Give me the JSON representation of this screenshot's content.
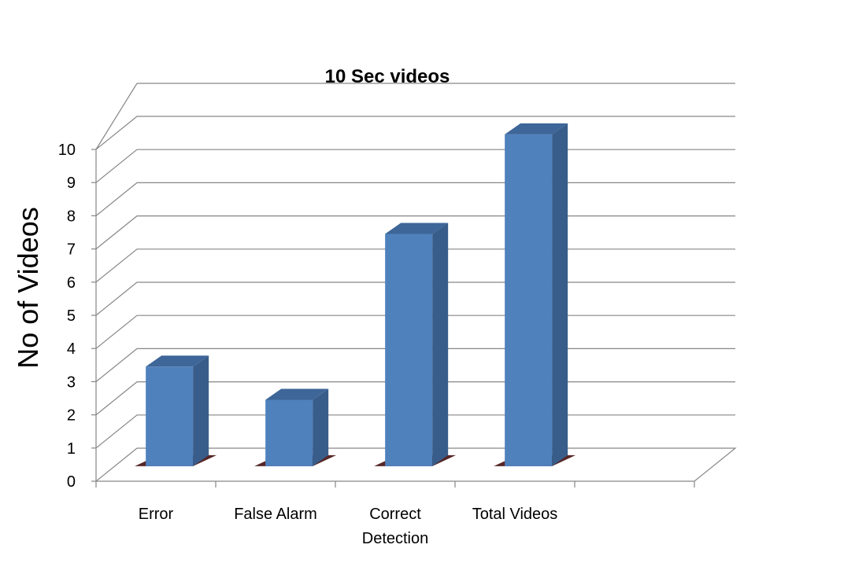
{
  "chart_data": {
    "type": "bar",
    "title": "10 Sec videos",
    "xlabel": "",
    "ylabel": "No of Videos",
    "categories": [
      "Error",
      "False Alarm",
      "Correct Detection",
      "Total Videos"
    ],
    "category_lines": [
      [
        "Error"
      ],
      [
        "False Alarm"
      ],
      [
        "Correct",
        "Detection"
      ],
      [
        "Total Videos"
      ]
    ],
    "values": [
      3,
      2,
      7,
      10
    ],
    "ylim": [
      0,
      10
    ],
    "yticks": [
      0,
      1,
      2,
      3,
      4,
      5,
      6,
      7,
      8,
      9,
      10
    ],
    "grid": true,
    "three_d": true,
    "colors": {
      "bar_front": "#4F81BD",
      "bar_side": "#385D8A",
      "bar_top": "#3E6698",
      "shadow": "#3A0000",
      "grid": "#868686",
      "axis": "#868686"
    }
  }
}
